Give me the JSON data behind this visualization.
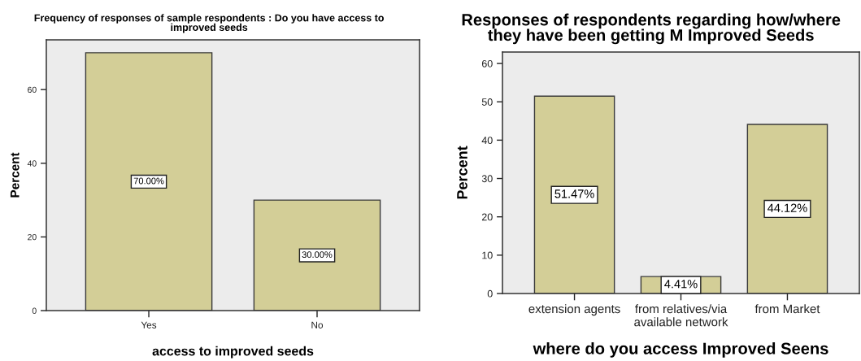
{
  "chart_data": [
    {
      "type": "bar",
      "title": "Frequency of responses of sample respondents : Do you have access to\nimproved seeds",
      "xlabel": "access to improved seeds",
      "ylabel": "Percent",
      "categories": [
        "Yes",
        "No"
      ],
      "values": [
        70,
        30
      ],
      "color": "#d3ce97",
      "value_labels": [
        "70.00%",
        "30.00%"
      ],
      "ylim": [
        0,
        73.5
      ],
      "yticks": [
        0,
        20,
        40,
        60
      ]
    },
    {
      "type": "bar",
      "title": "Responses of respondents regarding how/where\nthey have been getting M Improved Seeds",
      "xlabel": "where do you access Improved Seens",
      "ylabel": "Percent",
      "categories": [
        "extension agents",
        "from relatives/via\navailable network",
        "from Market"
      ],
      "values": [
        51.47,
        4.41,
        44.12
      ],
      "color": "#d3ce97",
      "value_labels": [
        "51.47%",
        "4.41%",
        "44.12%"
      ],
      "ylim": [
        0,
        63
      ],
      "yticks": [
        0,
        10,
        20,
        30,
        40,
        50,
        60
      ]
    }
  ]
}
